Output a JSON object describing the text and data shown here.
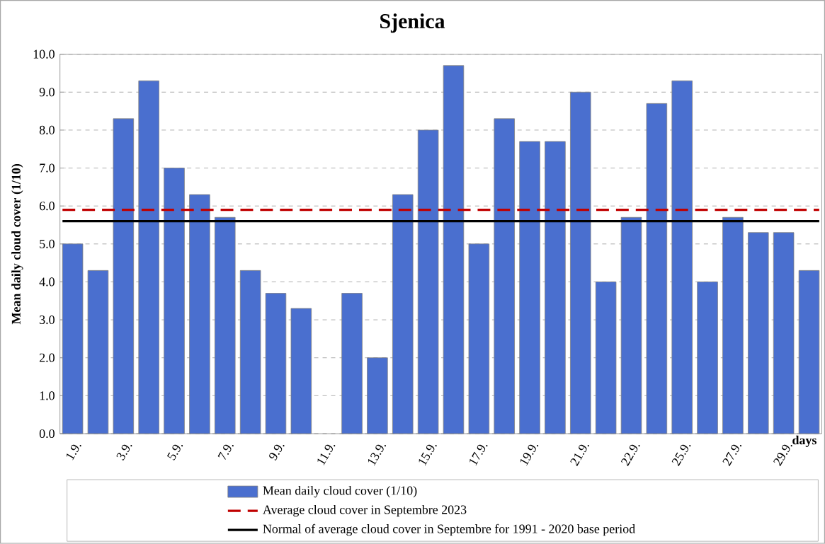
{
  "chart_data": {
    "type": "bar",
    "title": "Sjenica",
    "xlabel": "days",
    "ylabel": "Mean daily cloud cover (1/10)",
    "categories": [
      "1.9.",
      null,
      "3.9.",
      null,
      "5.9.",
      null,
      "7.9.",
      null,
      "9.9.",
      null,
      "11.9.",
      null,
      "13.9.",
      null,
      "15.9.",
      null,
      "17.9.",
      null,
      "19.9.",
      null,
      "21.9.",
      null,
      "22.9.",
      null,
      "25.9.",
      null,
      "27.9.",
      null,
      "29.9.",
      null
    ],
    "series": [
      {
        "name": "Mean daily cloud cover (1/10)",
        "color": "#4a6fcf",
        "values": [
          5.0,
          4.3,
          8.3,
          9.3,
          7.0,
          6.3,
          5.7,
          4.3,
          3.7,
          3.3,
          null,
          3.7,
          2.0,
          6.3,
          8.0,
          9.7,
          5.0,
          8.3,
          7.7,
          7.7,
          9.0,
          4.0,
          5.7,
          8.7,
          9.3,
          4.0,
          5.7,
          5.3,
          5.3,
          4.3
        ]
      }
    ],
    "ylim": [
      0,
      10
    ],
    "yticks": [
      {
        "value": 0,
        "label": "0.0"
      },
      {
        "value": 1,
        "label": "1.0"
      },
      {
        "value": 2,
        "label": "2.0"
      },
      {
        "value": 3,
        "label": "3.0"
      },
      {
        "value": 4,
        "label": "4.0"
      },
      {
        "value": 5,
        "label": "5.0"
      },
      {
        "value": 6,
        "label": "6.0"
      },
      {
        "value": 7,
        "label": "7.0"
      },
      {
        "value": 8,
        "label": "8.0"
      },
      {
        "value": 9,
        "label": "9.0"
      },
      {
        "value": 10,
        "label": "10.0"
      }
    ],
    "ref_lines": [
      {
        "axis": "y",
        "value": 5.9,
        "label": "Average cloud cover in Septembre 2023",
        "color": "#c00000",
        "line_style": "dashed"
      },
      {
        "axis": "y",
        "value": 5.6,
        "label": "Normal of average cloud cover in Septembre for 1991 - 2020 base period",
        "color": "#000000",
        "line_style": "solid"
      }
    ],
    "grid": "y",
    "legend": "bottom"
  }
}
